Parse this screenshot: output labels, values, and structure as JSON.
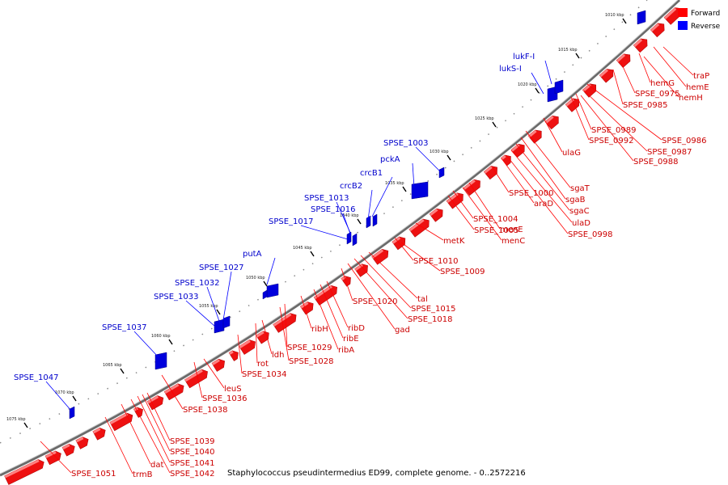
{
  "caption": "Staphylococcus pseudintermedius ED99, complete genome. - 0..2572216",
  "legend": [
    {
      "label": "Forward",
      "color": "#ff0000"
    },
    {
      "label": "Reverse",
      "color": "#0000ff"
    }
  ],
  "scale_ticks": [
    "1010 kbp",
    "1015 kbp",
    "1020 kbp",
    "1025 kbp",
    "1030 kbp",
    "1035 kbp",
    "1040 kbp",
    "1045 kbp",
    "1050 kbp",
    "1055 kbp",
    "1060 kbp",
    "1065 kbp",
    "1070 kbp",
    "1075 kbp"
  ],
  "forward_labels": [
    "traP",
    "hemE",
    "hemG",
    "hemH",
    "SPSE_0975",
    "SPSE_0985",
    "SPSE_0986",
    "SPSE_0987",
    "SPSE_0988",
    "SPSE_0989",
    "SPSE_0992",
    "ulaG",
    "sgaT",
    "sgaB",
    "sgaC",
    "ulaD",
    "SPSE_0998",
    "araD",
    "SPSE_1000",
    "menE",
    "menC",
    "SPSE_1004",
    "SPSE_1005",
    "metK",
    "SPSE_1010",
    "SPSE_1009",
    "tal",
    "SPSE_1015",
    "SPSE_1018",
    "gad",
    "SPSE_1020",
    "ribD",
    "ribE",
    "ribA",
    "ribH",
    "SPSE_1029",
    "SPSE_1028",
    "ldh",
    "rot",
    "SPSE_1034",
    "leuS",
    "SPSE_1036",
    "SPSE_1038",
    "SPSE_1039",
    "SPSE_1040",
    "SPSE_1041",
    "SPSE_1042",
    "dat",
    "trmB",
    "SPSE_1051"
  ],
  "reverse_labels": [
    "lukF-I",
    "lukS-I",
    "SPSE_1003",
    "pckA",
    "crcB1",
    "crcB2",
    "SPSE_1013",
    "SPSE_1016",
    "SPSE_1017",
    "putA",
    "SPSE_1027",
    "SPSE_1032",
    "SPSE_1033",
    "SPSE_1037",
    "SPSE_1047"
  ]
}
